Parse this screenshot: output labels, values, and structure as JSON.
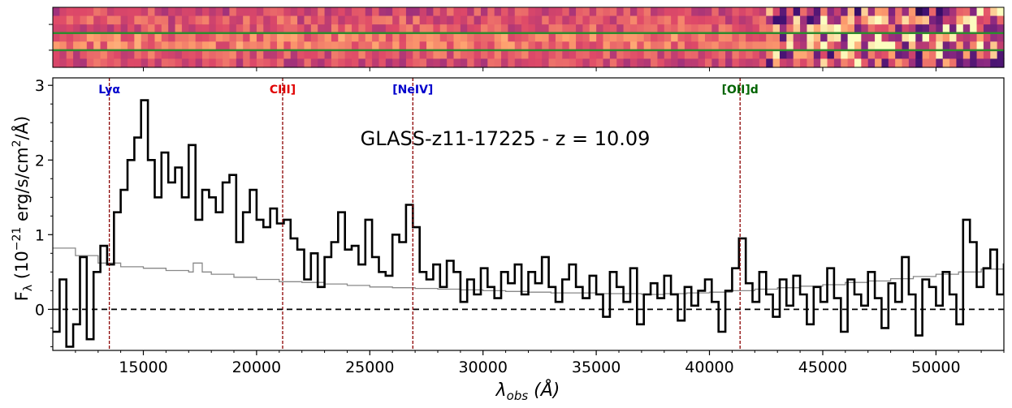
{
  "chart_data": {
    "type": "line",
    "title": "GLASS-z11-17225 - z = 10.09",
    "xlabel": "λ",
    "xlabel_sub": "obs",
    "xlabel_unit": "(Å)",
    "ylabel_prefix": "F",
    "ylabel_sub": "λ",
    "ylabel_main": "(10",
    "ylabel_exp": "−21",
    "ylabel_unit": "erg/s/cm",
    "ylabel_unit_exp": "2",
    "ylabel_end": "/Å)",
    "xlim": [
      11000,
      53000
    ],
    "ylim": [
      -0.55,
      3.1
    ],
    "xticks": [
      15000,
      20000,
      25000,
      30000,
      35000,
      40000,
      45000,
      50000
    ],
    "xtick_labels": [
      "15000",
      "20000",
      "25000",
      "30000",
      "35000",
      "40000",
      "45000",
      "50000"
    ],
    "yticks": [
      0,
      1,
      2,
      3
    ],
    "ytick_labels": [
      "0",
      "1",
      "2",
      "3"
    ],
    "zero_line": true,
    "lines": [
      {
        "label": "Lyα",
        "x": 13495,
        "color": "#0000cc"
      },
      {
        "label": "CIII]",
        "x": 21150,
        "color": "#e00000"
      },
      {
        "label": "[NeIV]",
        "x": 26900,
        "color": "#0000cc"
      },
      {
        "label": "[OII]d",
        "x": 41350,
        "color": "#006400"
      }
    ],
    "line_color": "#8b0000",
    "spectrum_color": "#000000",
    "error_color": "#888888",
    "spectrum": {
      "x": [
        11000,
        11300,
        11600,
        11900,
        12200,
        12500,
        12800,
        13100,
        13400,
        13700,
        14000,
        14300,
        14600,
        14900,
        15200,
        15500,
        15800,
        16100,
        16400,
        16700,
        17000,
        17300,
        17600,
        17900,
        18200,
        18500,
        18800,
        19100,
        19400,
        19700,
        20000,
        20300,
        20600,
        20900,
        21200,
        21500,
        21800,
        22100,
        22400,
        22700,
        23000,
        23300,
        23600,
        23900,
        24200,
        24500,
        24800,
        25100,
        25400,
        25700,
        26000,
        26300,
        26600,
        26900,
        27200,
        27500,
        27800,
        28100,
        28400,
        28700,
        29000,
        29300,
        29600,
        29900,
        30200,
        30500,
        30800,
        31100,
        31400,
        31700,
        32000,
        32300,
        32600,
        32900,
        33200,
        33500,
        33800,
        34100,
        34400,
        34700,
        35000,
        35300,
        35600,
        35900,
        36200,
        36500,
        36800,
        37100,
        37400,
        37700,
        38000,
        38300,
        38600,
        38900,
        39200,
        39500,
        39800,
        40100,
        40400,
        40700,
        41000,
        41300,
        41600,
        41900,
        42200,
        42500,
        42800,
        43100,
        43400,
        43700,
        44000,
        44300,
        44600,
        44900,
        45200,
        45500,
        45800,
        46100,
        46400,
        46700,
        47000,
        47300,
        47600,
        47900,
        48200,
        48500,
        48800,
        49100,
        49400,
        49700,
        50000,
        50300,
        50600,
        50900,
        51200,
        51500,
        51800,
        52100,
        52400,
        52700,
        53000
      ],
      "y": [
        -0.3,
        0.4,
        -0.5,
        -0.2,
        0.7,
        -0.4,
        0.5,
        0.85,
        0.6,
        1.3,
        1.6,
        2.0,
        2.3,
        2.8,
        2.0,
        1.5,
        2.1,
        1.7,
        1.9,
        1.5,
        2.2,
        1.2,
        1.6,
        1.5,
        1.3,
        1.7,
        1.8,
        0.9,
        1.3,
        1.6,
        1.2,
        1.1,
        1.35,
        1.15,
        1.2,
        0.95,
        0.8,
        0.4,
        0.75,
        0.3,
        0.7,
        0.9,
        1.3,
        0.8,
        0.85,
        0.6,
        1.2,
        0.7,
        0.5,
        0.45,
        1.0,
        0.9,
        1.4,
        1.1,
        0.5,
        0.4,
        0.6,
        0.3,
        0.65,
        0.5,
        0.1,
        0.4,
        0.2,
        0.55,
        0.3,
        0.15,
        0.5,
        0.35,
        0.6,
        0.2,
        0.5,
        0.35,
        0.7,
        0.3,
        0.1,
        0.4,
        0.6,
        0.3,
        0.15,
        0.45,
        0.2,
        -0.1,
        0.5,
        0.3,
        0.1,
        0.55,
        -0.2,
        0.2,
        0.35,
        0.15,
        0.45,
        0.2,
        -0.15,
        0.3,
        0.05,
        0.25,
        0.4,
        0.1,
        -0.3,
        0.25,
        0.55,
        0.95,
        0.35,
        0.1,
        0.5,
        0.2,
        -0.1,
        0.4,
        0.05,
        0.45,
        0.2,
        -0.2,
        0.3,
        0.1,
        0.55,
        0.15,
        -0.3,
        0.4,
        0.2,
        0.05,
        0.5,
        0.15,
        -0.25,
        0.35,
        0.1,
        0.7,
        0.2,
        -0.35,
        0.4,
        0.3,
        0.05,
        0.5,
        0.2,
        -0.2,
        1.2,
        0.9,
        0.3,
        0.55,
        0.8,
        0.2,
        0.6
      ]
    },
    "error": {
      "x": [
        11000,
        12000,
        13000,
        14000,
        15000,
        16000,
        17000,
        17200,
        17600,
        18000,
        19000,
        20000,
        21000,
        22000,
        23000,
        24000,
        25000,
        26000,
        27000,
        28000,
        29000,
        30000,
        31000,
        32000,
        33000,
        34000,
        35000,
        36000,
        37000,
        38000,
        39000,
        40000,
        41000,
        42000,
        43000,
        44000,
        45000,
        46000,
        47000,
        48000,
        49000,
        50000,
        51000,
        52000,
        53000
      ],
      "y": [
        0.82,
        0.72,
        0.62,
        0.57,
        0.55,
        0.52,
        0.5,
        0.62,
        0.5,
        0.47,
        0.43,
        0.4,
        0.37,
        0.36,
        0.34,
        0.32,
        0.3,
        0.29,
        0.28,
        0.27,
        0.26,
        0.25,
        0.24,
        0.23,
        0.22,
        0.22,
        0.21,
        0.21,
        0.2,
        0.21,
        0.22,
        0.23,
        0.25,
        0.27,
        0.29,
        0.31,
        0.33,
        0.36,
        0.38,
        0.41,
        0.44,
        0.47,
        0.5,
        0.54,
        0.58
      ]
    },
    "spectrum_2d": {
      "rows": 7,
      "columns": 140,
      "traces": [
        3,
        4
      ],
      "trace_color": "#2e8b2e"
    }
  }
}
